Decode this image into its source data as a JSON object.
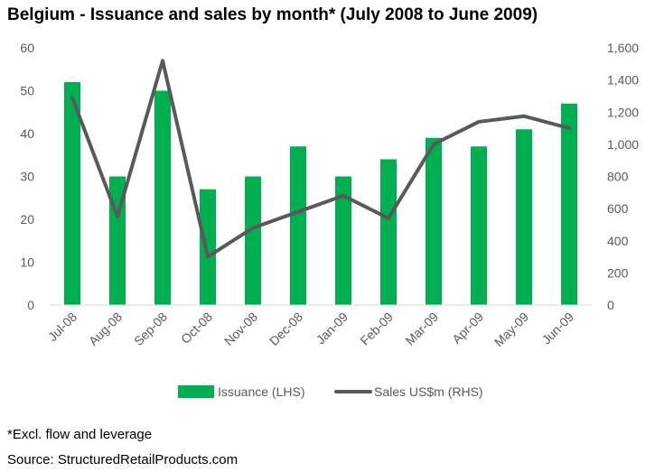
{
  "chart_data": {
    "type": "bar",
    "title": "Belgium - Issuance and sales by month* (July 2008 to June 2009)",
    "categories": [
      "Jul-08",
      "Aug-08",
      "Sep-08",
      "Oct-08",
      "Nov-08",
      "Dec-08",
      "Jan-09",
      "Feb-09",
      "Mar-09",
      "Apr-09",
      "May-09",
      "Jun-09"
    ],
    "series": [
      {
        "name": "Issuance (LHS)",
        "type": "bar",
        "axis": "left",
        "color": "#00b050",
        "values": [
          52,
          30,
          50,
          27,
          30,
          37,
          30,
          34,
          39,
          37,
          41,
          47
        ]
      },
      {
        "name": "Sales US$m (RHS)",
        "type": "line",
        "axis": "right",
        "color": "#595959",
        "values": [
          1290,
          550,
          1520,
          300,
          480,
          580,
          680,
          540,
          1000,
          1140,
          1175,
          1100
        ]
      }
    ],
    "ylim_left": [
      0,
      60
    ],
    "ylim_right": [
      0,
      1600
    ],
    "yticks_left": [
      "0",
      "10",
      "20",
      "30",
      "40",
      "50",
      "60"
    ],
    "yticks_right": [
      "0",
      "200",
      "400",
      "600",
      "800",
      "1,000",
      "1,200",
      "1,400",
      "1,600"
    ],
    "legend": "bottom",
    "grid": false
  },
  "footnotes": {
    "note": "*Excl. flow and leverage",
    "source": "Source: StructuredRetailProducts.com"
  }
}
